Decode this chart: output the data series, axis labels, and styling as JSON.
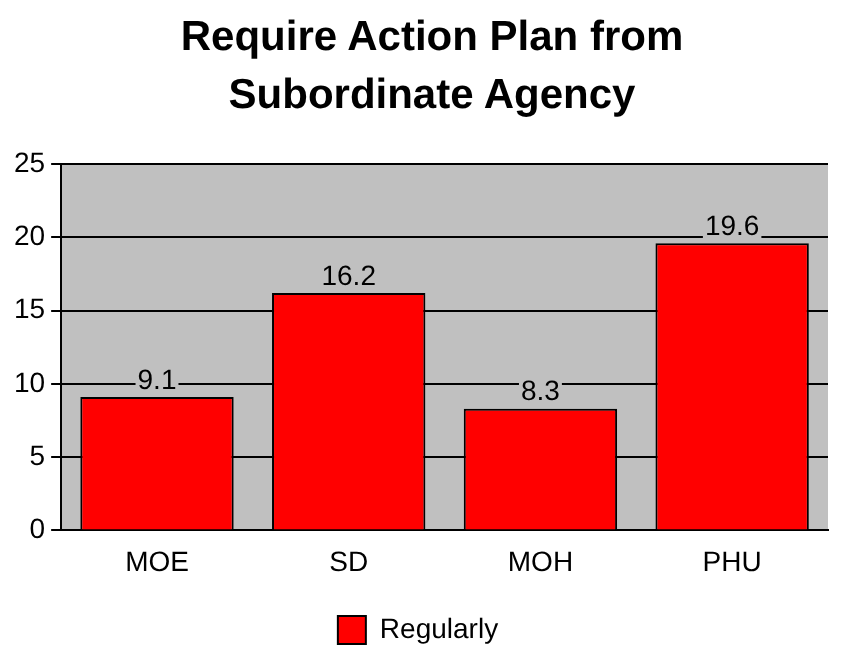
{
  "chart_data": {
    "type": "bar",
    "title": "Require Action Plan from Subordinate Agency",
    "categories": [
      "MOE",
      "SD",
      "MOH",
      "PHU"
    ],
    "series": [
      {
        "name": "Regularly",
        "color": "#ff0000",
        "values": [
          9.1,
          16.2,
          8.3,
          19.6
        ]
      }
    ],
    "ylim": [
      0,
      25
    ],
    "yticks": [
      0,
      5,
      10,
      15,
      20,
      25
    ],
    "grid": "y",
    "legend": "bottom",
    "data_labels": true
  }
}
